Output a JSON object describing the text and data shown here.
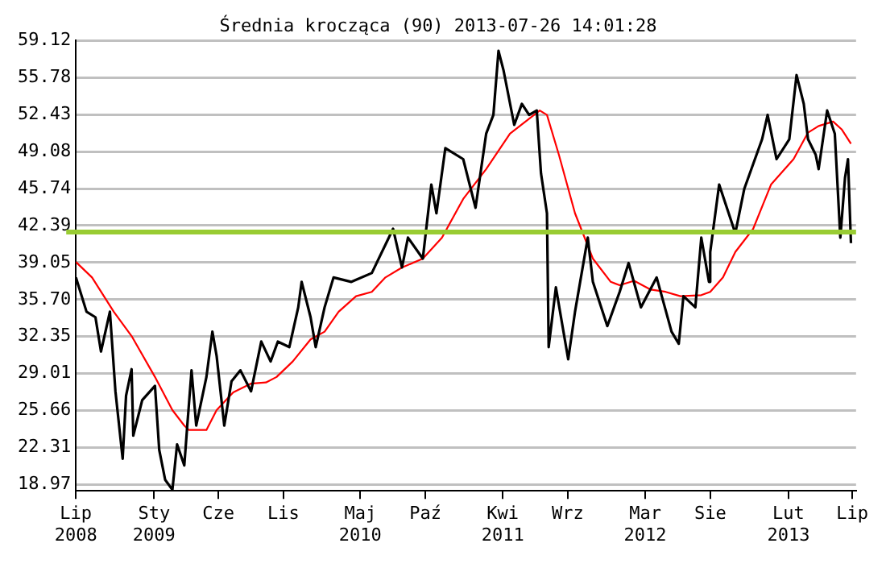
{
  "chart_data": {
    "type": "line",
    "title": "Średnia krocząca (90) 2013-07-26 14:01:28",
    "xlim": [
      "2008-07-01",
      "2013-07-10"
    ],
    "xticks": [
      {
        "value": "2008-07-01",
        "label": "Lip 2008"
      },
      {
        "value": "2009-01-01",
        "label": "Sty 2009"
      },
      {
        "value": "2009-06-01",
        "label": "Cze"
      },
      {
        "value": "2009-11-01",
        "label": "Lis"
      },
      {
        "value": "2010-05-01",
        "label": "Maj 2010"
      },
      {
        "value": "2010-10-01",
        "label": "Paź"
      },
      {
        "value": "2011-04-01",
        "label": "Kwi 2011"
      },
      {
        "value": "2011-09-01",
        "label": "Wrz"
      },
      {
        "value": "2012-03-01",
        "label": "Mar 2012"
      },
      {
        "value": "2012-08-01",
        "label": "Sie"
      },
      {
        "value": "2013-02-01",
        "label": "Lut 2013"
      },
      {
        "value": "2013-07-01",
        "label": "Lip"
      }
    ],
    "ylim": [
      18.4,
      59.12
    ],
    "yticks": [
      18.97,
      22.31,
      25.66,
      29.01,
      32.35,
      {
        "value": 35.7,
        "label": "35.70"
      },
      39.05,
      42.39,
      45.74,
      49.08,
      52.43,
      55.78,
      59.12
    ],
    "grid": "y",
    "legend": false,
    "marker": "none",
    "line_style": "solid",
    "ref_lines": [
      {
        "axis": "y",
        "value": 41.8,
        "label": null,
        "color": "#99cc33"
      }
    ],
    "series": [
      {
        "color": "#000000",
        "x": [
          "2008-07-01",
          "2008-07-26",
          "2008-08-16",
          "2008-08-29",
          "2008-09-19",
          "2008-10-02",
          "2008-10-19",
          "2008-10-27",
          "2008-11-09",
          "2008-11-13",
          "2008-12-04",
          "2009-01-03",
          "2009-01-13",
          "2009-01-27",
          "2009-02-13",
          "2009-02-24",
          "2009-03-13",
          "2009-03-20",
          "2009-03-30",
          "2009-04-10",
          "2009-05-04",
          "2009-05-18",
          "2009-05-28",
          "2009-06-15",
          "2009-07-02",
          "2009-07-23",
          "2009-08-17",
          "2009-09-10",
          "2009-10-02",
          "2009-10-19",
          "2009-11-15",
          "2009-12-06",
          "2009-12-14",
          "2010-01-04",
          "2010-01-16",
          "2010-02-06",
          "2010-02-27",
          "2010-04-10",
          "2010-05-28",
          "2010-07-17",
          "2010-08-07",
          "2010-08-21",
          "2010-09-25",
          "2010-10-15",
          "2010-10-27",
          "2010-11-17",
          "2010-12-29",
          "2011-01-27",
          "2011-02-21",
          "2011-03-10",
          "2011-03-22",
          "2011-04-03",
          "2011-04-28",
          "2011-05-16",
          "2011-06-02",
          "2011-06-20",
          "2011-06-30",
          "2011-07-14",
          "2011-07-18",
          "2011-08-04",
          "2011-09-02",
          "2011-09-18",
          "2011-10-18",
          "2011-10-30",
          "2011-12-03",
          "2012-01-01",
          "2012-01-22",
          "2012-02-20",
          "2012-03-28",
          "2012-05-02",
          "2012-05-19",
          "2012-05-30",
          "2012-06-27",
          "2012-07-11",
          "2012-07-29",
          "2012-08-01",
          "2012-08-22",
          "2012-09-29",
          "2012-10-20",
          "2012-12-01",
          "2012-12-14",
          "2013-01-04",
          "2013-02-03",
          "2013-02-20",
          "2013-03-09",
          "2013-03-19",
          "2013-04-06",
          "2013-04-13",
          "2013-05-03",
          "2013-05-21",
          "2013-06-03",
          "2013-06-14",
          "2013-06-21",
          "2013-06-28"
        ],
        "values": [
          37.7,
          34.6,
          34.1,
          31.0,
          34.6,
          27.4,
          21.3,
          27.0,
          29.4,
          23.4,
          26.6,
          27.9,
          22.1,
          19.4,
          18.5,
          22.6,
          20.7,
          24.3,
          29.3,
          24.3,
          28.7,
          32.8,
          30.6,
          24.3,
          28.3,
          29.3,
          27.4,
          31.9,
          30.1,
          31.9,
          31.4,
          35.0,
          37.3,
          34.1,
          31.4,
          35.0,
          37.7,
          37.3,
          38.1,
          42.1,
          38.6,
          41.3,
          39.4,
          46.1,
          43.5,
          49.4,
          48.4,
          44.0,
          50.7,
          52.4,
          58.2,
          56.4,
          51.5,
          53.4,
          52.4,
          52.8,
          47.1,
          43.5,
          31.4,
          36.8,
          30.3,
          34.6,
          41.3,
          37.3,
          33.3,
          36.4,
          39.0,
          35.0,
          37.7,
          32.8,
          31.7,
          36.0,
          35.0,
          41.3,
          37.3,
          40.0,
          46.1,
          41.7,
          45.7,
          50.2,
          52.4,
          48.4,
          50.2,
          56.0,
          53.4,
          50.2,
          48.8,
          47.5,
          52.8,
          50.7,
          41.3,
          46.7,
          48.4,
          40.8
        ]
      },
      {
        "color": "#ff0000",
        "x": [
          "2008-07-01",
          "2008-08-08",
          "2008-09-28",
          "2008-11-09",
          "2009-01-03",
          "2009-02-13",
          "2009-03-13",
          "2009-03-24",
          "2009-05-04",
          "2009-05-28",
          "2009-07-06",
          "2009-08-17",
          "2009-09-21",
          "2009-10-16",
          "2009-11-23",
          "2010-01-04",
          "2010-02-06",
          "2010-03-11",
          "2010-04-21",
          "2010-05-28",
          "2010-06-29",
          "2010-08-07",
          "2010-09-25",
          "2010-11-09",
          "2010-12-29",
          "2011-02-21",
          "2011-04-18",
          "2011-06-27",
          "2011-07-14",
          "2011-08-11",
          "2011-09-18",
          "2011-10-30",
          "2011-12-11",
          "2012-01-01",
          "2012-02-04",
          "2012-03-14",
          "2012-04-18",
          "2012-05-23",
          "2012-07-11",
          "2012-08-01",
          "2012-08-31",
          "2012-09-29",
          "2012-11-10",
          "2012-12-22",
          "2013-02-13",
          "2013-03-19",
          "2013-04-13",
          "2013-05-17",
          "2013-06-06",
          "2013-06-28"
        ],
        "values": [
          39.1,
          37.7,
          34.6,
          32.4,
          28.7,
          25.7,
          24.3,
          23.9,
          23.9,
          25.7,
          27.3,
          28.1,
          28.2,
          28.7,
          30.1,
          32.1,
          32.8,
          34.6,
          36.0,
          36.4,
          37.7,
          38.6,
          39.4,
          41.3,
          44.8,
          47.5,
          50.7,
          52.8,
          52.4,
          48.8,
          43.5,
          39.4,
          37.3,
          37.0,
          37.4,
          36.6,
          36.4,
          36.0,
          36.1,
          36.4,
          37.7,
          40.0,
          42.1,
          46.1,
          48.4,
          50.8,
          51.4,
          51.8,
          51.1,
          49.8
        ]
      }
    ]
  }
}
